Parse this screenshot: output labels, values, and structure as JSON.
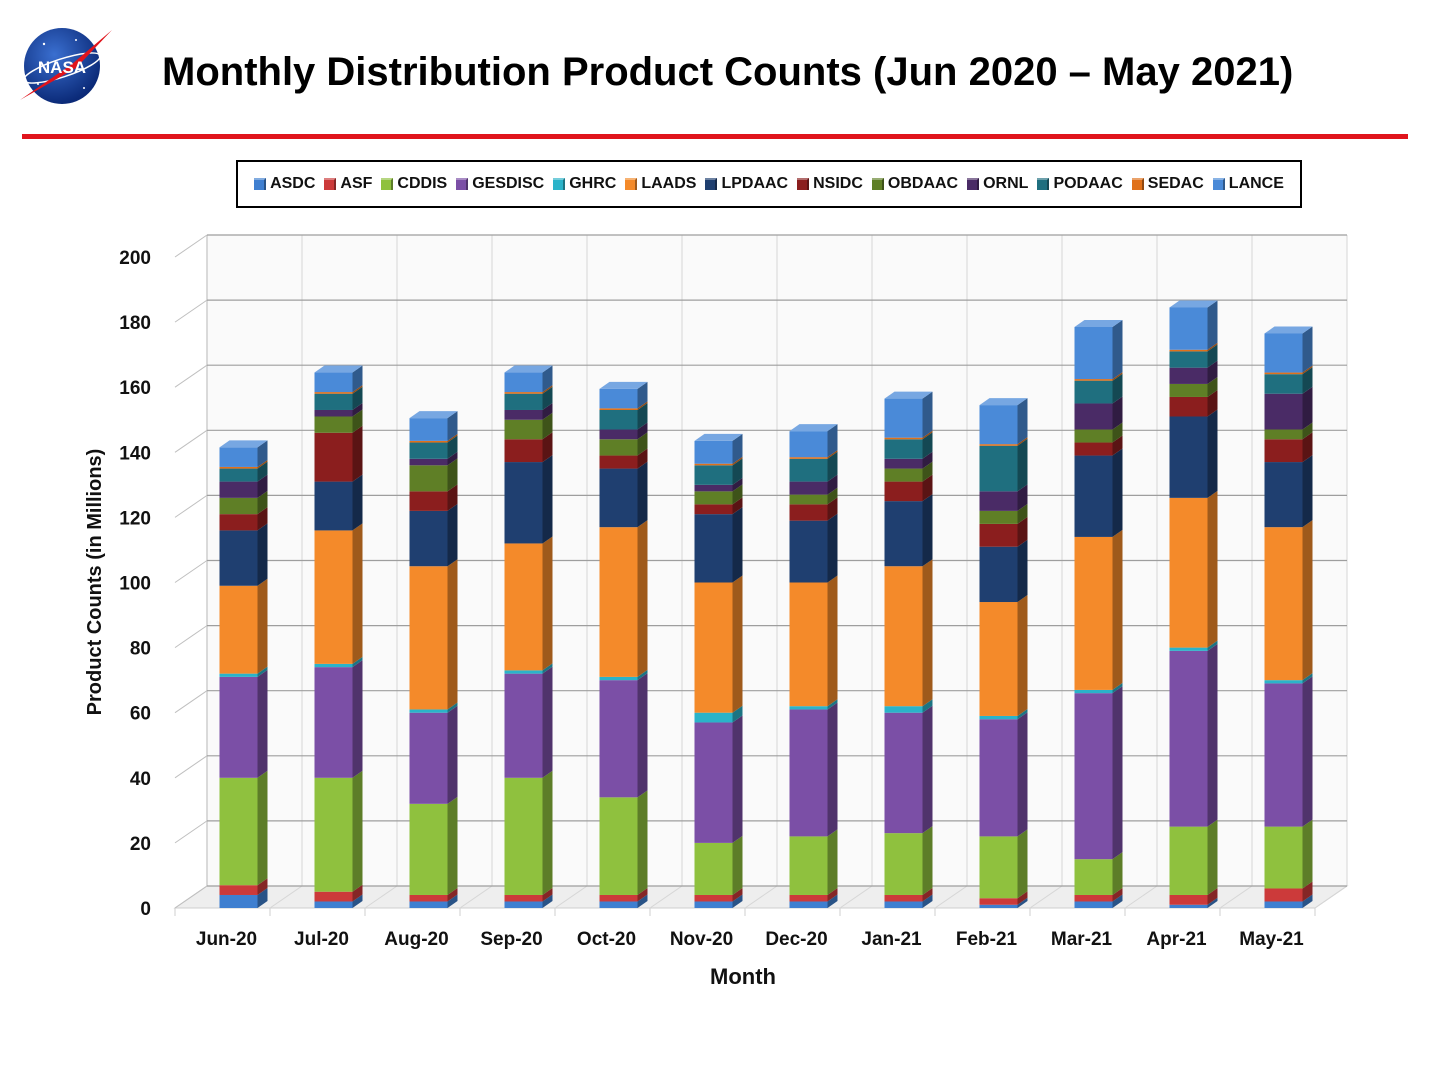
{
  "header": {
    "title": "Monthly Distribution Product Counts (Jun 2020 – May 2021)",
    "logo_text": "NASA",
    "rule_color": "#e0141c"
  },
  "chart_data": {
    "type": "bar",
    "stacked": true,
    "style": "3d",
    "title": "Monthly Distribution Product Counts (Jun 2020 – May 2021)",
    "xlabel": "Month",
    "ylabel": "Product Counts (in Millions)",
    "ylim": [
      0,
      200
    ],
    "yticks": [
      0,
      20,
      40,
      60,
      80,
      100,
      120,
      140,
      160,
      180,
      200
    ],
    "grid": true,
    "legend_position": "top",
    "categories": [
      "Jun-20",
      "Jul-20",
      "Aug-20",
      "Sep-20",
      "Oct-20",
      "Nov-20",
      "Dec-20",
      "Jan-21",
      "Feb-21",
      "Mar-21",
      "Apr-21",
      "May-21"
    ],
    "series": [
      {
        "name": "ASDC",
        "color": "#3f7fd0",
        "values": [
          4,
          2,
          2,
          2,
          2,
          2,
          2,
          2,
          1,
          2,
          1,
          2
        ]
      },
      {
        "name": "ASF",
        "color": "#cc3a3a",
        "values": [
          3,
          3,
          2,
          2,
          2,
          2,
          2,
          2,
          2,
          2,
          3,
          4
        ]
      },
      {
        "name": "CDDIS",
        "color": "#8fc13e",
        "values": [
          33,
          35,
          28,
          36,
          30,
          16,
          18,
          19,
          19,
          11,
          21,
          19
        ]
      },
      {
        "name": "GESDISC",
        "color": "#7b4fa6",
        "values": [
          31,
          34,
          28,
          32,
          36,
          37,
          39,
          37,
          36,
          51,
          54,
          44
        ]
      },
      {
        "name": "GHRC",
        "color": "#2bb3c9",
        "values": [
          1,
          1,
          1,
          1,
          1,
          3,
          1,
          2,
          1,
          1,
          1,
          1
        ]
      },
      {
        "name": "LAADS",
        "color": "#f48a2a",
        "values": [
          27,
          41,
          44,
          39,
          46,
          40,
          38,
          43,
          35,
          47,
          46,
          47
        ]
      },
      {
        "name": "LPDAAC",
        "color": "#1f3f70",
        "values": [
          17,
          15,
          17,
          25,
          18,
          21,
          19,
          20,
          17,
          25,
          25,
          20
        ]
      },
      {
        "name": "NSIDC",
        "color": "#8b1e1e",
        "values": [
          5,
          15,
          6,
          7,
          4,
          3,
          5,
          6,
          7,
          4,
          6,
          7
        ]
      },
      {
        "name": "OBDAAC",
        "color": "#5f7f26",
        "values": [
          5,
          5,
          8,
          6,
          5,
          4,
          3,
          4,
          4,
          4,
          4,
          3
        ]
      },
      {
        "name": "ORNL",
        "color": "#4a2b66",
        "values": [
          5,
          2,
          2,
          3,
          3,
          2,
          4,
          3,
          6,
          8,
          5,
          11
        ]
      },
      {
        "name": "PODAAC",
        "color": "#1f6f7f",
        "values": [
          4,
          5,
          5,
          5,
          6,
          6,
          7,
          6,
          14,
          7,
          5,
          6
        ]
      },
      {
        "name": "SEDAC",
        "color": "#e0711a",
        "values": [
          0.5,
          0.5,
          0.5,
          0.5,
          0.5,
          0.5,
          0.5,
          0.5,
          0.5,
          0.5,
          0.5,
          0.5
        ]
      },
      {
        "name": "LANCE",
        "color": "#4a8ad8",
        "values": [
          6,
          6,
          7,
          6,
          6,
          7,
          8,
          12,
          12,
          16,
          13,
          12
        ]
      }
    ]
  }
}
